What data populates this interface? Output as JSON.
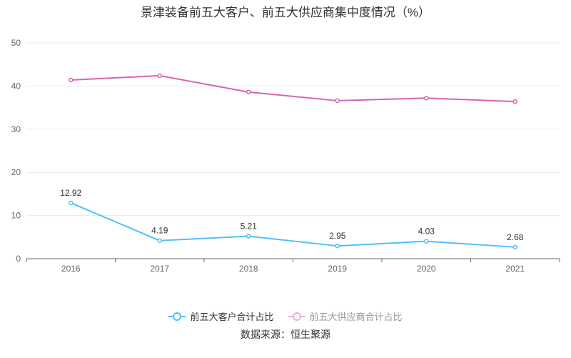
{
  "chart_data": {
    "type": "line",
    "title": "景津装备前五大客户、前五大供应商集中度情况（%）",
    "categories": [
      "2016",
      "2017",
      "2018",
      "2019",
      "2020",
      "2021"
    ],
    "ylim": [
      0,
      50
    ],
    "yticks": [
      0,
      10,
      20,
      30,
      40,
      50
    ],
    "grid": true,
    "legend_position": "bottom",
    "series": [
      {
        "name": "前五大客户合计占比",
        "color": "#4fbfff",
        "values": [
          12.92,
          4.19,
          5.21,
          2.95,
          4.03,
          2.68
        ],
        "labels": [
          "12.92",
          "4.19",
          "5.21",
          "2.95",
          "4.03",
          "2.68"
        ],
        "legend_active": true
      },
      {
        "name": "前五大供应商合计占比",
        "color": "#d963b3",
        "values": [
          41.4,
          42.4,
          38.6,
          36.6,
          37.2,
          36.4
        ],
        "legend_active": false
      }
    ]
  },
  "source": "数据来源：恒生聚源"
}
